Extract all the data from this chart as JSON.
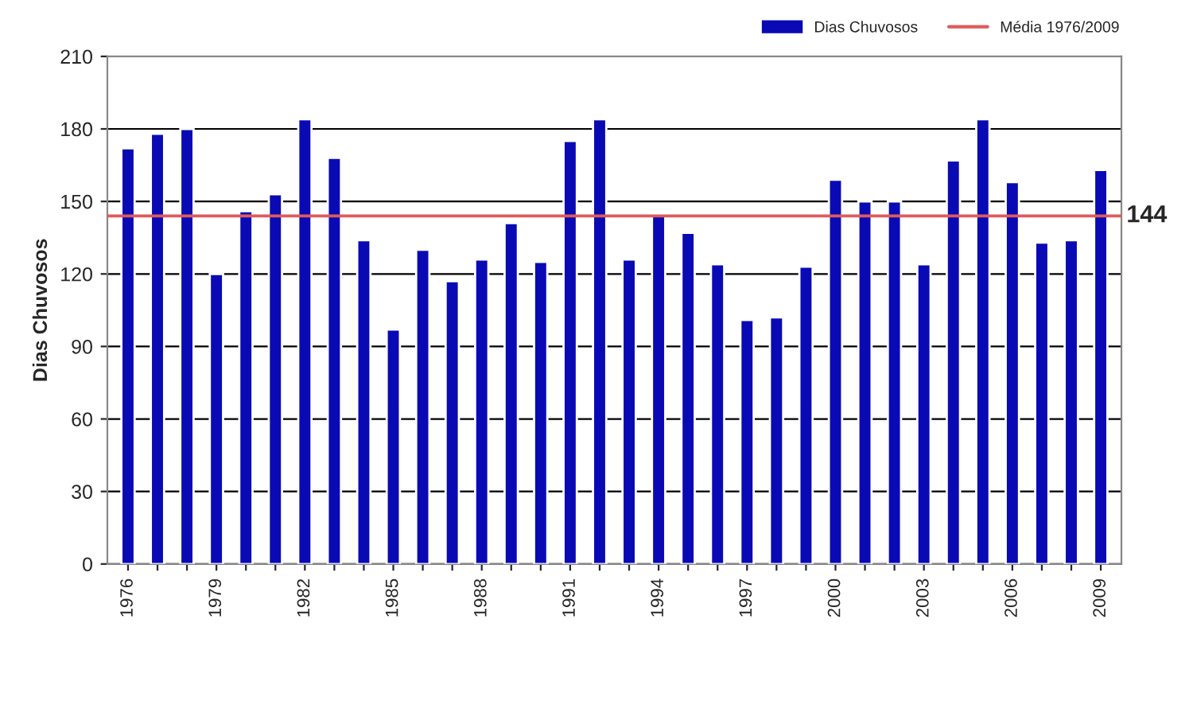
{
  "chart_data": {
    "type": "bar",
    "ylabel": "Dias Chuvosos",
    "categories": [
      "1976",
      null,
      null,
      "1979",
      null,
      null,
      "1982",
      null,
      null,
      "1985",
      null,
      null,
      "1988",
      null,
      null,
      "1991",
      null,
      null,
      "1994",
      null,
      null,
      "1997",
      null,
      null,
      "2000",
      null,
      null,
      "2003",
      null,
      null,
      "2006",
      null,
      null,
      "2009"
    ],
    "series": [
      {
        "name": "Dias Chuvosos",
        "color": "#0a0ab4",
        "values": [
          172,
          178,
          180,
          120,
          146,
          153,
          184,
          168,
          134,
          97,
          130,
          117,
          126,
          141,
          125,
          175,
          184,
          126,
          144,
          137,
          124,
          101,
          102,
          123,
          159,
          150,
          150,
          124,
          167,
          184,
          158,
          133,
          134,
          163
        ]
      }
    ],
    "ylim": [
      0,
      210
    ],
    "yticks": [
      0,
      30,
      60,
      90,
      120,
      150,
      180,
      210
    ],
    "ref_lines": [
      {
        "axis": "y",
        "value": 144,
        "label": "Média 1976/2009",
        "color": "#e05a5a",
        "line_style": "solid"
      }
    ],
    "annotations": [
      "144"
    ],
    "grid": "y",
    "legend": "top right"
  }
}
